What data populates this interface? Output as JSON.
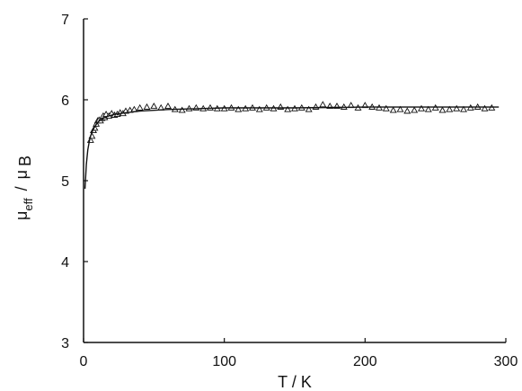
{
  "chart_data": {
    "type": "scatter",
    "title": "",
    "xlabel": "T / K",
    "ylabel": {
      "mu": "μ",
      "eff": "eff",
      "slash": "/",
      "mu2": "μ",
      "B": "B"
    },
    "xlim": [
      0,
      300
    ],
    "ylim": [
      3,
      7
    ],
    "x_ticks": [
      0,
      100,
      200,
      300
    ],
    "x_tick_labels": [
      "0",
      "100",
      "200",
      "300"
    ],
    "y_ticks": [
      3,
      4,
      5,
      6,
      7
    ],
    "y_tick_labels": [
      "3",
      "4",
      "5",
      "6",
      "7"
    ],
    "grid": false,
    "legend": "none",
    "colors": {
      "axis": "#111111",
      "series": "#111111"
    },
    "series": [
      {
        "kind": "points",
        "marker": "open-triangle",
        "x": [
          5,
          6,
          7,
          8,
          9,
          10,
          11,
          12,
          13,
          14,
          15,
          16,
          18,
          20,
          22,
          24,
          26,
          28,
          30,
          33,
          36,
          40,
          45,
          50,
          55,
          60,
          65,
          70,
          75,
          80,
          85,
          90,
          95,
          100,
          105,
          110,
          115,
          120,
          125,
          130,
          135,
          140,
          145,
          150,
          155,
          160,
          165,
          170,
          175,
          180,
          185,
          190,
          195,
          200,
          205,
          210,
          215,
          220,
          225,
          230,
          235,
          240,
          245,
          250,
          255,
          260,
          265,
          270,
          275,
          280,
          285,
          290
        ],
        "y": [
          5.5,
          5.55,
          5.62,
          5.65,
          5.7,
          5.74,
          5.75,
          5.74,
          5.77,
          5.8,
          5.78,
          5.82,
          5.8,
          5.83,
          5.81,
          5.82,
          5.84,
          5.83,
          5.86,
          5.87,
          5.88,
          5.9,
          5.91,
          5.92,
          5.9,
          5.92,
          5.88,
          5.87,
          5.89,
          5.9,
          5.89,
          5.9,
          5.89,
          5.89,
          5.9,
          5.88,
          5.89,
          5.9,
          5.88,
          5.9,
          5.89,
          5.91,
          5.88,
          5.89,
          5.9,
          5.88,
          5.91,
          5.94,
          5.92,
          5.92,
          5.91,
          5.93,
          5.9,
          5.93,
          5.91,
          5.9,
          5.89,
          5.87,
          5.88,
          5.86,
          5.87,
          5.89,
          5.88,
          5.9,
          5.87,
          5.88,
          5.89,
          5.88,
          5.9,
          5.91,
          5.89,
          5.9
        ]
      },
      {
        "kind": "line",
        "x": [
          1,
          2,
          3,
          4,
          5,
          6,
          8,
          10,
          12,
          15,
          18,
          22,
          26,
          30,
          40,
          50,
          60,
          80,
          100,
          150,
          200,
          250,
          295
        ],
        "y": [
          4.9,
          5.2,
          5.38,
          5.48,
          5.55,
          5.6,
          5.67,
          5.72,
          5.75,
          5.78,
          5.8,
          5.82,
          5.83,
          5.84,
          5.86,
          5.87,
          5.88,
          5.89,
          5.9,
          5.9,
          5.91,
          5.91,
          5.91
        ]
      }
    ]
  }
}
